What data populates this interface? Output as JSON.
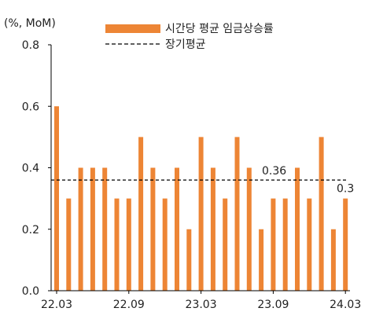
{
  "colors": {
    "bar": "#ED8535",
    "avg_line": "#000000"
  },
  "chart_data": {
    "type": "bar",
    "unit_label": "(%, MoM)",
    "x": [
      "22.03",
      "22.04",
      "22.05",
      "22.06",
      "22.07",
      "22.08",
      "22.09",
      "22.10",
      "22.11",
      "22.12",
      "23.01",
      "23.02",
      "23.03",
      "23.04",
      "23.05",
      "23.06",
      "23.07",
      "23.08",
      "23.09",
      "23.10",
      "23.11",
      "23.12",
      "24.01",
      "24.02",
      "24.03"
    ],
    "values": [
      0.6,
      0.3,
      0.4,
      0.4,
      0.4,
      0.3,
      0.3,
      0.5,
      0.4,
      0.3,
      0.4,
      0.2,
      0.5,
      0.4,
      0.3,
      0.5,
      0.4,
      0.2,
      0.3,
      0.3,
      0.4,
      0.3,
      0.5,
      0.2,
      0.3
    ],
    "x_tick_labels": [
      "22.03",
      "22.09",
      "23.03",
      "23.09",
      "24.03"
    ],
    "y_ticks": [
      "0.0",
      "0.2",
      "0.4",
      "0.6",
      "0.8"
    ],
    "ylim": [
      0,
      0.8
    ],
    "series": [
      {
        "name": "시간당 평균 임금상승률"
      }
    ],
    "reference_line": {
      "name": "장기평균",
      "value": 0.36,
      "label": "0.36"
    },
    "last_value_label": "0.3",
    "legend_position": "top"
  }
}
